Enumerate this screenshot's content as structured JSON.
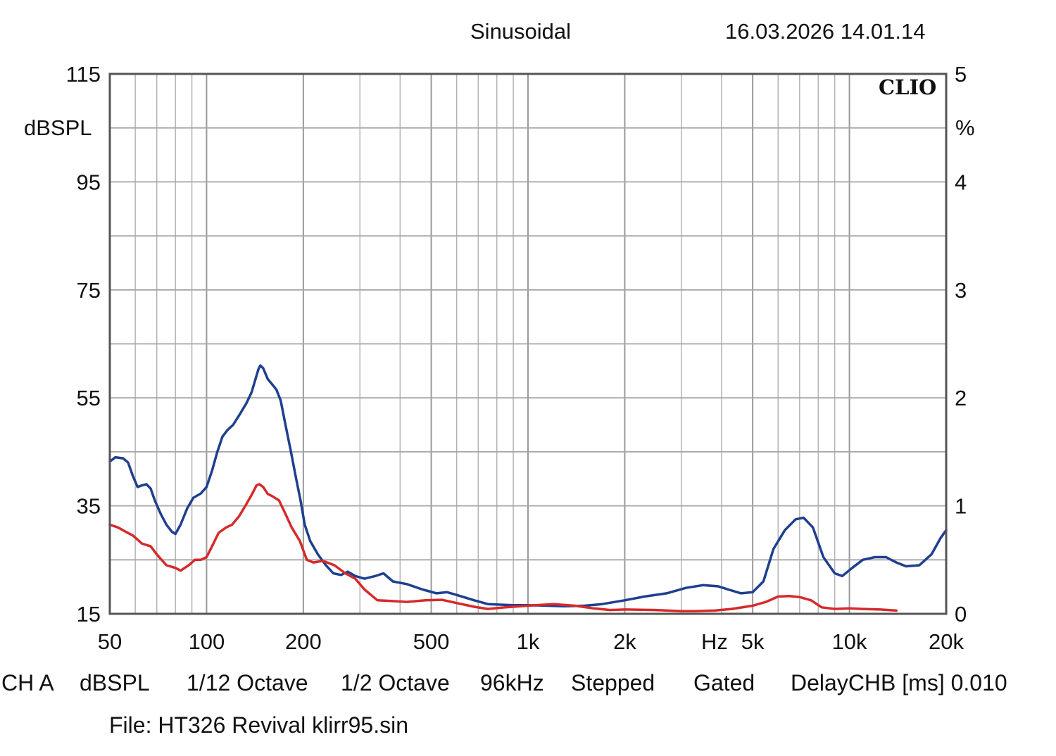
{
  "header": {
    "mode": "Sinusoidal",
    "datetime": "16.03.2026 14.01.14"
  },
  "brand": "CLIO",
  "footer": {
    "channel": "CH A",
    "unit": "dBSPL",
    "smoothing": "1/12 Octave",
    "resolution": "1/2 Octave",
    "sample_rate": "96kHz",
    "sweep": "Stepped",
    "window": "Gated",
    "delay": "DelayCHB [ms] 0.010",
    "file": "File: HT326 Revival klirr95.sin"
  },
  "chart_data": {
    "type": "line",
    "title": "Sinusoidal",
    "xlabel": "Hz",
    "ylabel": "dBSPL",
    "y2label": "%",
    "x_scale": "log",
    "xlim": [
      50,
      20000
    ],
    "ylim": [
      15,
      115
    ],
    "y2lim": [
      0,
      5
    ],
    "grid": true,
    "x_ticks": [
      {
        "value": 50,
        "label": "50"
      },
      {
        "value": 100,
        "label": "100"
      },
      {
        "value": 200,
        "label": "200"
      },
      {
        "value": 500,
        "label": "500"
      },
      {
        "value": 1000,
        "label": "1k"
      },
      {
        "value": 2000,
        "label": "2k"
      },
      {
        "value": 5000,
        "label": "5k"
      },
      {
        "value": 10000,
        "label": "10k"
      },
      {
        "value": 20000,
        "label": "20k"
      }
    ],
    "y_ticks": [
      {
        "value": 115,
        "label": "115"
      },
      {
        "value": 95,
        "label": "95"
      },
      {
        "value": 75,
        "label": "75"
      },
      {
        "value": 55,
        "label": "55"
      },
      {
        "value": 35,
        "label": "35"
      },
      {
        "value": 15,
        "label": "15"
      }
    ],
    "y2_ticks": [
      {
        "value": 5,
        "label": "5"
      },
      {
        "value": 4,
        "label": "4"
      },
      {
        "value": 3,
        "label": "3"
      },
      {
        "value": 2,
        "label": "2"
      },
      {
        "value": 1,
        "label": "1"
      },
      {
        "value": 0,
        "label": "0"
      }
    ],
    "series": [
      {
        "color": "#1f3f8f",
        "points": [
          [
            50,
            43.2
          ],
          [
            52,
            44.0
          ],
          [
            55,
            43.8
          ],
          [
            57,
            43.0
          ],
          [
            59,
            40.5
          ],
          [
            61,
            38.5
          ],
          [
            63,
            38.8
          ],
          [
            65,
            39.0
          ],
          [
            67,
            38.2
          ],
          [
            69,
            36.0
          ],
          [
            72,
            33.5
          ],
          [
            75,
            31.5
          ],
          [
            78,
            30.2
          ],
          [
            80,
            29.8
          ],
          [
            83,
            31.5
          ],
          [
            87,
            34.5
          ],
          [
            91,
            36.5
          ],
          [
            96,
            37.3
          ],
          [
            100,
            38.5
          ],
          [
            104,
            41.5
          ],
          [
            108,
            45.0
          ],
          [
            112,
            47.8
          ],
          [
            116,
            49.0
          ],
          [
            121,
            50.0
          ],
          [
            127,
            52.0
          ],
          [
            133,
            54.0
          ],
          [
            138,
            56.0
          ],
          [
            142,
            58.5
          ],
          [
            145,
            60.3
          ],
          [
            147,
            61.0
          ],
          [
            150,
            60.5
          ],
          [
            155,
            58.5
          ],
          [
            160,
            57.5
          ],
          [
            165,
            56.5
          ],
          [
            170,
            54.5
          ],
          [
            176,
            50.0
          ],
          [
            183,
            45.0
          ],
          [
            190,
            40.0
          ],
          [
            196,
            36.0
          ],
          [
            202,
            31.5
          ],
          [
            210,
            28.5
          ],
          [
            222,
            26.0
          ],
          [
            235,
            24.0
          ],
          [
            248,
            22.5
          ],
          [
            262,
            22.2
          ],
          [
            275,
            22.8
          ],
          [
            290,
            22.0
          ],
          [
            310,
            21.5
          ],
          [
            335,
            22.0
          ],
          [
            355,
            22.5
          ],
          [
            380,
            21.0
          ],
          [
            420,
            20.5
          ],
          [
            470,
            19.5
          ],
          [
            520,
            18.8
          ],
          [
            560,
            19.0
          ],
          [
            600,
            18.5
          ],
          [
            680,
            17.5
          ],
          [
            750,
            16.8
          ],
          [
            820,
            16.7
          ],
          [
            900,
            16.6
          ],
          [
            1000,
            16.6
          ],
          [
            1150,
            16.5
          ],
          [
            1300,
            16.4
          ],
          [
            1500,
            16.5
          ],
          [
            1700,
            16.8
          ],
          [
            2000,
            17.5
          ],
          [
            2300,
            18.2
          ],
          [
            2700,
            18.8
          ],
          [
            3100,
            19.8
          ],
          [
            3500,
            20.3
          ],
          [
            3900,
            20.1
          ],
          [
            4200,
            19.5
          ],
          [
            4600,
            18.8
          ],
          [
            5000,
            19.0
          ],
          [
            5400,
            21.0
          ],
          [
            5800,
            27.0
          ],
          [
            6300,
            30.5
          ],
          [
            6800,
            32.5
          ],
          [
            7200,
            32.8
          ],
          [
            7700,
            31.0
          ],
          [
            8300,
            25.5
          ],
          [
            9000,
            22.5
          ],
          [
            9500,
            22.0
          ],
          [
            10200,
            23.5
          ],
          [
            11000,
            25.0
          ],
          [
            12000,
            25.5
          ],
          [
            13000,
            25.5
          ],
          [
            14000,
            24.5
          ],
          [
            15000,
            23.8
          ],
          [
            16500,
            24.0
          ],
          [
            18000,
            26.0
          ],
          [
            19200,
            29.0
          ],
          [
            20000,
            30.5
          ]
        ]
      },
      {
        "color": "#d62a2a",
        "points": [
          [
            50,
            31.5
          ],
          [
            53,
            31.0
          ],
          [
            56,
            30.2
          ],
          [
            59,
            29.5
          ],
          [
            63,
            28.0
          ],
          [
            67,
            27.5
          ],
          [
            70,
            26.0
          ],
          [
            75,
            24.0
          ],
          [
            80,
            23.5
          ],
          [
            83,
            23.0
          ],
          [
            88,
            24.0
          ],
          [
            92,
            25.0
          ],
          [
            96,
            25.0
          ],
          [
            100,
            25.5
          ],
          [
            104,
            27.5
          ],
          [
            109,
            30.0
          ],
          [
            115,
            31.0
          ],
          [
            120,
            31.5
          ],
          [
            126,
            33.0
          ],
          [
            132,
            35.0
          ],
          [
            138,
            37.0
          ],
          [
            143,
            38.8
          ],
          [
            146,
            39.0
          ],
          [
            150,
            38.5
          ],
          [
            155,
            37.2
          ],
          [
            160,
            36.8
          ],
          [
            168,
            36.0
          ],
          [
            176,
            33.5
          ],
          [
            184,
            31.0
          ],
          [
            195,
            28.5
          ],
          [
            205,
            25.0
          ],
          [
            215,
            24.5
          ],
          [
            230,
            24.8
          ],
          [
            250,
            24.0
          ],
          [
            270,
            22.5
          ],
          [
            290,
            21.5
          ],
          [
            310,
            19.5
          ],
          [
            340,
            17.5
          ],
          [
            370,
            17.4
          ],
          [
            420,
            17.2
          ],
          [
            480,
            17.5
          ],
          [
            540,
            17.6
          ],
          [
            600,
            17.0
          ],
          [
            680,
            16.3
          ],
          [
            750,
            15.9
          ],
          [
            850,
            16.2
          ],
          [
            1000,
            16.5
          ],
          [
            1200,
            16.8
          ],
          [
            1400,
            16.5
          ],
          [
            1600,
            16.0
          ],
          [
            1800,
            15.7
          ],
          [
            2000,
            15.8
          ],
          [
            2500,
            15.7
          ],
          [
            3000,
            15.5
          ],
          [
            3300,
            15.5
          ],
          [
            3800,
            15.6
          ],
          [
            4300,
            15.9
          ],
          [
            5000,
            16.5
          ],
          [
            5500,
            17.2
          ],
          [
            6000,
            18.2
          ],
          [
            6500,
            18.3
          ],
          [
            7000,
            18.1
          ],
          [
            7600,
            17.5
          ],
          [
            8200,
            16.2
          ],
          [
            9000,
            15.9
          ],
          [
            10000,
            16.0
          ],
          [
            11000,
            15.9
          ],
          [
            12500,
            15.8
          ],
          [
            14000,
            15.6
          ]
        ]
      }
    ]
  }
}
